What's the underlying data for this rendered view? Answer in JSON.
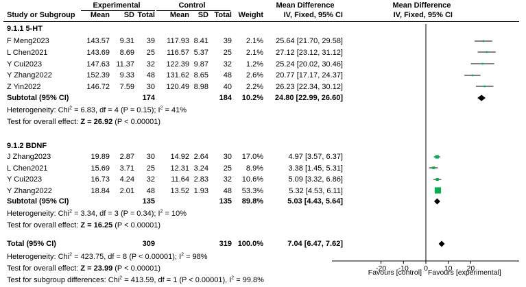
{
  "header": {
    "experimental": "Experimental",
    "control": "Control",
    "mean_difference": "Mean Difference",
    "mean_difference_plot": "Mean Difference",
    "study": "Study or Subgroup",
    "mean": "Mean",
    "sd": "SD",
    "total": "Total",
    "weight": "Weight",
    "method": "IV, Fixed, 95% CI",
    "method_plot": "IV, Fixed, 95% CI"
  },
  "groups": [
    {
      "title": "9.1.1 5-HT",
      "rows": [
        {
          "study": "F Meng2023",
          "e_mean": "143.57",
          "e_sd": "9.31",
          "e_total": "39",
          "c_mean": "117.93",
          "c_sd": "8.41",
          "c_total": "39",
          "weight": "2.1%",
          "ci": "25.64 [21.70, 29.58]"
        },
        {
          "study": "L Chen2021",
          "e_mean": "143.69",
          "e_sd": "8.69",
          "e_total": "25",
          "c_mean": "116.57",
          "c_sd": "5.37",
          "c_total": "25",
          "weight": "2.1%",
          "ci": "27.12 [23.12, 31.12]"
        },
        {
          "study": "Y Cui2023",
          "e_mean": "147.63",
          "e_sd": "11.37",
          "e_total": "32",
          "c_mean": "122.39",
          "c_sd": "9.87",
          "c_total": "32",
          "weight": "1.2%",
          "ci": "25.24 [20.02, 30.46]"
        },
        {
          "study": "Y Zhang2022",
          "e_mean": "152.39",
          "e_sd": "9.33",
          "e_total": "48",
          "c_mean": "131.62",
          "c_sd": "8.65",
          "c_total": "48",
          "weight": "2.6%",
          "ci": "20.77 [17.17, 24.37]"
        },
        {
          "study": "Z Yin2022",
          "e_mean": "146.72",
          "e_sd": "7.59",
          "e_total": "30",
          "c_mean": "120.49",
          "c_sd": "8.98",
          "c_total": "40",
          "weight": "2.2%",
          "ci": "26.23 [22.34, 30.12]"
        }
      ],
      "subtotal": {
        "label": "Subtotal (95% CI)",
        "e_total": "174",
        "c_total": "184",
        "weight": "10.2%",
        "ci": "24.80 [22.99, 26.60]"
      },
      "heterogeneity": {
        "prefix": "Heterogeneity: Chi",
        "sup": "2",
        "mid": " = 6.83, df = 4 (P = 0.15); I",
        "sup2": "2",
        "end": " = 41%"
      },
      "overall": {
        "prefix": "Test for overall effect: ",
        "z": "Z = 26.92",
        "end": " (P < 0.00001)"
      }
    },
    {
      "title": "9.1.2 BDNF",
      "rows": [
        {
          "study": "J Zhang2023",
          "e_mean": "19.89",
          "e_sd": "2.87",
          "e_total": "30",
          "c_mean": "14.92",
          "c_sd": "2.64",
          "c_total": "30",
          "weight": "17.0%",
          "ci": "4.97 [3.57, 6.37]"
        },
        {
          "study": "L Chen2021",
          "e_mean": "15.69",
          "e_sd": "3.71",
          "e_total": "25",
          "c_mean": "12.31",
          "c_sd": "3.24",
          "c_total": "25",
          "weight": "8.9%",
          "ci": "3.38 [1.45, 5.31]"
        },
        {
          "study": "Y Cui2023",
          "e_mean": "16.73",
          "e_sd": "4.24",
          "e_total": "32",
          "c_mean": "11.64",
          "c_sd": "2.83",
          "c_total": "32",
          "weight": "10.6%",
          "ci": "5.09 [3.32, 6.86]"
        },
        {
          "study": "Y Zhang2022",
          "e_mean": "18.84",
          "e_sd": "2.01",
          "e_total": "48",
          "c_mean": "13.52",
          "c_sd": "1.93",
          "c_total": "48",
          "weight": "53.3%",
          "ci": "5.32 [4.53, 6.11]"
        }
      ],
      "subtotal": {
        "label": "Subtotal (95% CI)",
        "e_total": "135",
        "c_total": "135",
        "weight": "89.8%",
        "ci": "5.03 [4.43, 5.64]"
      },
      "heterogeneity": {
        "prefix": "Heterogeneity: Chi",
        "sup": "2",
        "mid": " = 3.34, df = 3 (P = 0.34); I",
        "sup2": "2",
        "end": " = 10%"
      },
      "overall": {
        "prefix": "Test for overall effect: ",
        "z": "Z = 16.25",
        "end": " (P < 0.00001)"
      }
    }
  ],
  "total": {
    "label": "Total (95% CI)",
    "e_total": "309",
    "c_total": "319",
    "weight": "100.0%",
    "ci": "7.04 [6.47, 7.62]"
  },
  "footer": {
    "heterogeneity": {
      "prefix": "Heterogeneity: Chi",
      "sup": "2",
      "mid": " = 423.75, df = 8 (P < 0.00001); I",
      "sup2": "2",
      "end": " = 98%"
    },
    "overall": {
      "prefix": "Test for overall effect: ",
      "z": "Z = 23.99",
      "end": " (P < 0.00001)"
    },
    "subgroup": {
      "prefix": "Test for subgroup differences: Chi",
      "sup": "2",
      "mid": " = 413.59, df = 1 (P < 0.00001), I",
      "sup2": "2",
      "end": " = 99.8%"
    }
  },
  "chart_data": {
    "type": "forest",
    "xlim": [
      -20,
      20
    ],
    "ticks": [
      "-20",
      "-10",
      "0",
      "10",
      "20"
    ],
    "favours_left": "Favours [control]",
    "favours_right": "Favours [experimental]",
    "studies": [
      {
        "group": 0,
        "md": 25.64,
        "lo": 21.7,
        "hi": 29.58,
        "weight": 2.1
      },
      {
        "group": 0,
        "md": 27.12,
        "lo": 23.12,
        "hi": 31.12,
        "weight": 2.1
      },
      {
        "group": 0,
        "md": 25.24,
        "lo": 20.02,
        "hi": 30.46,
        "weight": 1.2
      },
      {
        "group": 0,
        "md": 20.77,
        "lo": 17.17,
        "hi": 24.37,
        "weight": 2.6
      },
      {
        "group": 0,
        "md": 26.23,
        "lo": 22.34,
        "hi": 30.12,
        "weight": 2.2
      },
      {
        "group": 1,
        "md": 4.97,
        "lo": 3.57,
        "hi": 6.37,
        "weight": 17.0
      },
      {
        "group": 1,
        "md": 3.38,
        "lo": 1.45,
        "hi": 5.31,
        "weight": 8.9
      },
      {
        "group": 1,
        "md": 5.09,
        "lo": 3.32,
        "hi": 6.86,
        "weight": 10.6
      },
      {
        "group": 1,
        "md": 5.32,
        "lo": 4.53,
        "hi": 6.11,
        "weight": 53.3
      }
    ],
    "diamonds": [
      {
        "kind": "subtotal",
        "md": 24.8,
        "lo": 22.99,
        "hi": 26.6
      },
      {
        "kind": "subtotal",
        "md": 5.03,
        "lo": 4.43,
        "hi": 5.64
      },
      {
        "kind": "total",
        "md": 7.04,
        "lo": 6.47,
        "hi": 7.62
      }
    ],
    "marker_color": "#00b050"
  }
}
